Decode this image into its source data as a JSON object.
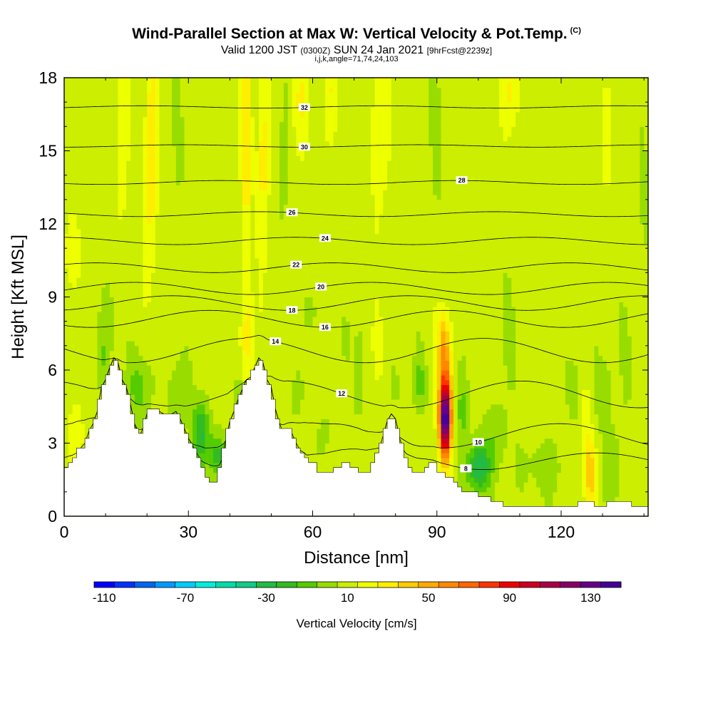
{
  "header": {
    "title": "Wind-Parallel Section at Max W: Vertical Velocity & Pot.Temp.",
    "copyright": "(C)",
    "valid_prefix": "Valid 1200 JST",
    "valid_utc": "(0300Z)",
    "valid_date": "SUN 24 Jan 2021",
    "forecast": "[9hrFcst@2239z]",
    "indices": "i,j,k,angle=71,74,24,103"
  },
  "chart_data": {
    "type": "heatmap",
    "xlabel": "Distance [nm]",
    "ylabel": "Height [Kft MSL]",
    "xlim": [
      0,
      141
    ],
    "ylim": [
      0,
      18
    ],
    "x_ticks": [
      0,
      30,
      60,
      90,
      120
    ],
    "y_ticks": [
      0,
      3,
      6,
      9,
      12,
      15,
      18
    ],
    "colorbar": {
      "label": "Vertical Velocity [cm/s]",
      "tick_labels": [
        -110,
        -70,
        -30,
        10,
        50,
        90,
        130
      ],
      "min": -115,
      "max": 145,
      "step": 10,
      "colors": [
        "#0000ff",
        "#0033ff",
        "#0066ee",
        "#0099ff",
        "#00ccff",
        "#00eedd",
        "#00ddaa",
        "#11cc88",
        "#22bb44",
        "#33bb22",
        "#55cc00",
        "#99dd00",
        "#ccee00",
        "#eeff00",
        "#ffee00",
        "#ffcc00",
        "#ffaa00",
        "#ff8800",
        "#ff6600",
        "#ff3300",
        "#ee0000",
        "#cc0022",
        "#aa0044",
        "#880066",
        "#660088",
        "#440099"
      ]
    },
    "background_w": 10,
    "terrain": [
      [
        0,
        2
      ],
      [
        2,
        2.2
      ],
      [
        3,
        2.6
      ],
      [
        5,
        3.0
      ],
      [
        6,
        3.5
      ],
      [
        7,
        3.8
      ],
      [
        8,
        4.3
      ],
      [
        9,
        5.3
      ],
      [
        10,
        5.6
      ],
      [
        11,
        6.1
      ],
      [
        12,
        6.5
      ],
      [
        13,
        6.3
      ],
      [
        14,
        5.6
      ],
      [
        15,
        5.3
      ],
      [
        16,
        4.6
      ],
      [
        17,
        3.8
      ],
      [
        18,
        3.2
      ],
      [
        19,
        3.6
      ],
      [
        20,
        4.2
      ],
      [
        21,
        4.4
      ],
      [
        23,
        4.3
      ],
      [
        25,
        4.1
      ],
      [
        27,
        4.3
      ],
      [
        28,
        4.0
      ],
      [
        29,
        3.6
      ],
      [
        30,
        3.2
      ],
      [
        31,
        2.9
      ],
      [
        32,
        2.6
      ],
      [
        33,
        2.3
      ],
      [
        34,
        1.8
      ],
      [
        35,
        1.5
      ],
      [
        36,
        1.3
      ],
      [
        37,
        1.6
      ],
      [
        38,
        2.3
      ],
      [
        39,
        3.1
      ],
      [
        40,
        3.9
      ],
      [
        41,
        4.3
      ],
      [
        42,
        4.8
      ],
      [
        43,
        5.2
      ],
      [
        44,
        5.6
      ],
      [
        45,
        5.7
      ],
      [
        46,
        6.1
      ],
      [
        47,
        6.5
      ],
      [
        48,
        6.3
      ],
      [
        49,
        5.6
      ],
      [
        50,
        5.3
      ],
      [
        51,
        4.4
      ],
      [
        52,
        3.8
      ],
      [
        53,
        3.4
      ],
      [
        54,
        3.6
      ],
      [
        55,
        3.4
      ],
      [
        56,
        3.0
      ],
      [
        57,
        2.7
      ],
      [
        58,
        2.6
      ],
      [
        59,
        2.3
      ],
      [
        60,
        2.2
      ],
      [
        61,
        2.0
      ],
      [
        62,
        1.8
      ],
      [
        63,
        1.7
      ],
      [
        65,
        1.9
      ],
      [
        67,
        2.1
      ],
      [
        69,
        2.1
      ],
      [
        71,
        2.0
      ],
      [
        72,
        1.8
      ],
      [
        73,
        1.7
      ],
      [
        74,
        2.0
      ],
      [
        75,
        2.3
      ],
      [
        76,
        2.7
      ],
      [
        77,
        3.3
      ],
      [
        78,
        3.9
      ],
      [
        79,
        4.2
      ],
      [
        80,
        4.0
      ],
      [
        81,
        3.2
      ],
      [
        82,
        2.7
      ],
      [
        83,
        2.2
      ],
      [
        84,
        1.9
      ],
      [
        85,
        1.7
      ],
      [
        86,
        1.8
      ],
      [
        87,
        2.0
      ],
      [
        88,
        2.1
      ],
      [
        89,
        2.2
      ],
      [
        90,
        2.0
      ],
      [
        91,
        1.8
      ],
      [
        92,
        1.7
      ],
      [
        93,
        1.6
      ],
      [
        94,
        1.4
      ],
      [
        95,
        1.3
      ],
      [
        96,
        1.1
      ],
      [
        97,
        1.0
      ],
      [
        98,
        1.0
      ],
      [
        100,
        0.9
      ],
      [
        102,
        0.8
      ],
      [
        104,
        0.6
      ],
      [
        106,
        0.5
      ],
      [
        108,
        0.4
      ],
      [
        110,
        0.4
      ],
      [
        115,
        0.4
      ],
      [
        120,
        0.4
      ],
      [
        124,
        0.5
      ],
      [
        127,
        0.6
      ],
      [
        129,
        0.4
      ],
      [
        131,
        0.5
      ],
      [
        133,
        0.7
      ],
      [
        135,
        0.6
      ],
      [
        137,
        0.5
      ],
      [
        139,
        0.4
      ],
      [
        141,
        0.4
      ]
    ],
    "w_blobs": [
      {
        "x": 92,
        "z": 3.9,
        "sx": 1.4,
        "sz": 1.5,
        "w": 125
      },
      {
        "x": 92,
        "z": 5.8,
        "sx": 1.7,
        "sz": 2.0,
        "w": 40
      },
      {
        "x": 91.5,
        "z": 7.3,
        "sx": 1.4,
        "sz": 1.2,
        "w": 20
      },
      {
        "x": 100,
        "z": 2.0,
        "sx": 2.6,
        "sz": 1.0,
        "w": -45
      },
      {
        "x": 104,
        "z": 3.2,
        "sx": 3.5,
        "sz": 1.5,
        "w": -12
      },
      {
        "x": 96,
        "z": 4.6,
        "sx": 1.5,
        "sz": 2.2,
        "w": -18
      },
      {
        "x": 86,
        "z": 5.5,
        "sx": 1.6,
        "sz": 1.3,
        "w": -18
      },
      {
        "x": 127,
        "z": 1.8,
        "sx": 1.3,
        "sz": 1.6,
        "w": 30
      },
      {
        "x": 126,
        "z": 4.6,
        "sx": 1.0,
        "sz": 2.4,
        "w": 10
      },
      {
        "x": 123,
        "z": 5.3,
        "sx": 2.0,
        "sz": 1.5,
        "w": -10
      },
      {
        "x": 130,
        "z": 5.2,
        "sx": 2.5,
        "sz": 1.8,
        "w": -12
      },
      {
        "x": 133,
        "z": 1.8,
        "sx": 2.0,
        "sz": 1.6,
        "w": -12
      },
      {
        "x": 116,
        "z": 2.0,
        "sx": 5.0,
        "sz": 1.1,
        "w": -12
      },
      {
        "x": 136,
        "z": 6.2,
        "sx": 1.5,
        "sz": 2.5,
        "w": -8
      },
      {
        "x": 44,
        "z": 7.4,
        "sx": 1.4,
        "sz": 2.3,
        "w": 22
      },
      {
        "x": 42.5,
        "z": 4.8,
        "sx": 1.3,
        "sz": 1.0,
        "w": -18
      },
      {
        "x": 37,
        "z": 2.5,
        "sx": 2.1,
        "sz": 1.0,
        "w": -30
      },
      {
        "x": 33,
        "z": 3.4,
        "sx": 2.0,
        "sz": 1.3,
        "w": -35
      },
      {
        "x": 28,
        "z": 5.0,
        "sx": 3.0,
        "sz": 1.5,
        "w": -14
      },
      {
        "x": 18,
        "z": 5.3,
        "sx": 3.0,
        "sz": 1.4,
        "w": -20
      },
      {
        "x": 11,
        "z": 8.0,
        "sx": 1.3,
        "sz": 2.0,
        "w": -12
      },
      {
        "x": 9,
        "z": 6.5,
        "sx": 1.3,
        "sz": 1.2,
        "w": -14
      },
      {
        "x": 2,
        "z": 10.8,
        "sx": 1.6,
        "sz": 1.6,
        "w": 18
      },
      {
        "x": 3,
        "z": 3.2,
        "sx": 2.0,
        "sz": 1.5,
        "w": 12
      },
      {
        "x": 14,
        "z": 15.8,
        "sx": 1.3,
        "sz": 3.5,
        "w": 15
      },
      {
        "x": 21,
        "z": 15.0,
        "sx": 1.5,
        "sz": 4.5,
        "w": 25
      },
      {
        "x": 44,
        "z": 15.0,
        "sx": 1.2,
        "sz": 4.0,
        "w": 25
      },
      {
        "x": 48,
        "z": 15.0,
        "sx": 1.4,
        "sz": 4.0,
        "w": 20
      },
      {
        "x": 57,
        "z": 17.0,
        "sx": 2.0,
        "sz": 2.0,
        "w": 14
      },
      {
        "x": 76,
        "z": 16.0,
        "sx": 2.2,
        "sz": 3.5,
        "w": 14
      },
      {
        "x": 64,
        "z": 17.5,
        "sx": 1.8,
        "sz": 2.0,
        "w": 12
      },
      {
        "x": 108,
        "z": 17.3,
        "sx": 3.0,
        "sz": 1.5,
        "w": 14
      },
      {
        "x": 131,
        "z": 16.0,
        "sx": 1.5,
        "sz": 2.5,
        "w": 14
      },
      {
        "x": 28,
        "z": 15.5,
        "sx": 1.5,
        "sz": 3.0,
        "w": -8
      },
      {
        "x": 53,
        "z": 14.0,
        "sx": 1.2,
        "sz": 3.5,
        "w": -8
      },
      {
        "x": 90,
        "z": 15.0,
        "sx": 1.5,
        "sz": 3.5,
        "w": -8
      },
      {
        "x": 140,
        "z": 14.0,
        "sx": 1.5,
        "sz": 3.0,
        "w": -8
      },
      {
        "x": 138,
        "z": 10.0,
        "sx": 1.2,
        "sz": 2.0,
        "w": -7
      },
      {
        "x": 60,
        "z": 8.4,
        "sx": 1.5,
        "sz": 1.0,
        "w": -10
      },
      {
        "x": 68,
        "z": 7.5,
        "sx": 1.8,
        "sz": 2.0,
        "w": -10
      },
      {
        "x": 71,
        "z": 5.0,
        "sx": 1.5,
        "sz": 2.0,
        "w": -7
      },
      {
        "x": 80,
        "z": 5.3,
        "sx": 1.2,
        "sz": 1.3,
        "w": -7
      },
      {
        "x": 76,
        "z": 7.0,
        "sx": 1.2,
        "sz": 1.3,
        "w": 12
      },
      {
        "x": 56,
        "z": 5.0,
        "sx": 2.0,
        "sz": 1.2,
        "w": -8
      },
      {
        "x": 63,
        "z": 3.4,
        "sx": 2.0,
        "sz": 1.2,
        "w": -7
      },
      {
        "x": 109,
        "z": 7.2,
        "sx": 2.5,
        "sz": 3.0,
        "w": -8
      }
    ],
    "theta_lines": [
      {
        "value": 8,
        "base": 2.25,
        "amp": 0.35,
        "label_x": 97
      },
      {
        "value": 10,
        "base": 3.3,
        "amp": 0.5,
        "label_x": 100
      },
      {
        "value": 12,
        "base": 5.0,
        "amp": 0.55,
        "label_x": 67
      },
      {
        "value": 14,
        "base": 6.8,
        "amp": 0.5,
        "label_x": 51
      },
      {
        "value": 16,
        "base": 8.1,
        "amp": 0.35,
        "label_x": 63
      },
      {
        "value": 18,
        "base": 8.75,
        "amp": 0.3,
        "label_x": 55
      },
      {
        "value": 20,
        "base": 9.35,
        "amp": 0.25,
        "label_x": 62
      },
      {
        "value": 22,
        "base": 10.2,
        "amp": 0.2,
        "label_x": 56
      },
      {
        "value": 24,
        "base": 11.3,
        "amp": 0.15,
        "label_x": 63
      },
      {
        "value": 26,
        "base": 12.4,
        "amp": 0.1,
        "label_x": 55
      },
      {
        "value": 28,
        "base": 13.7,
        "amp": 0.08,
        "label_x": 96
      },
      {
        "value": 30,
        "base": 15.2,
        "amp": 0.05,
        "label_x": 58
      },
      {
        "value": 32,
        "base": 16.8,
        "amp": 0.05,
        "label_x": 58
      }
    ]
  }
}
